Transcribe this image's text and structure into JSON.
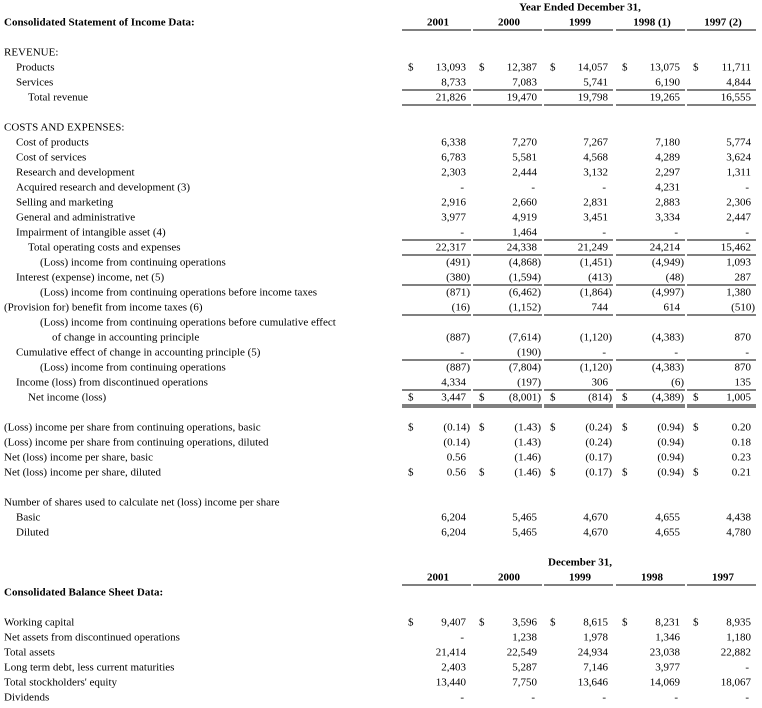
{
  "currency_symbol": "$",
  "income_statement": {
    "period_label": "Year Ended December 31,",
    "title": "Consolidated Statement of Income Data:",
    "columns": [
      "2001",
      "2000",
      "1999",
      "1998 (1)",
      "1997 (2)"
    ],
    "rows": [
      {
        "label": "REVENUE:"
      },
      {
        "label": "Products",
        "values": [
          "13,093",
          "12,387",
          "14,057",
          "13,075",
          "11,711"
        ]
      },
      {
        "label": "Services",
        "values": [
          "8,733",
          "7,083",
          "5,741",
          "6,190",
          "4,844"
        ]
      },
      {
        "label": "Total revenue",
        "values": [
          "21,826",
          "19,470",
          "19,798",
          "19,265",
          "16,555"
        ]
      },
      {
        "label": "COSTS AND EXPENSES:"
      },
      {
        "label": "Cost of products",
        "values": [
          "6,338",
          "7,270",
          "7,267",
          "7,180",
          "5,774"
        ]
      },
      {
        "label": "Cost of services",
        "values": [
          "6,783",
          "5,581",
          "4,568",
          "4,289",
          "3,624"
        ]
      },
      {
        "label": "Research and development",
        "values": [
          "2,303",
          "2,444",
          "3,132",
          "2,297",
          "1,311"
        ]
      },
      {
        "label": "Acquired research and development (3)",
        "values": [
          "-",
          "-",
          "-",
          "4,231",
          "-"
        ]
      },
      {
        "label": "Selling and marketing",
        "values": [
          "2,916",
          "2,660",
          "2,831",
          "2,883",
          "2,306"
        ]
      },
      {
        "label": "General and administrative",
        "values": [
          "3,977",
          "4,919",
          "3,451",
          "3,334",
          "2,447"
        ]
      },
      {
        "label": "Impairment of intangible asset (4)",
        "values": [
          "-",
          "1,464",
          "-",
          "-",
          "-"
        ]
      },
      {
        "label": "Total operating costs and expenses",
        "values": [
          "22,317",
          "24,338",
          "21,249",
          "24,214",
          "15,462"
        ]
      },
      {
        "label": "(Loss) income from continuing operations",
        "values": [
          "(491)",
          "(4,868)",
          "(1,451)",
          "(4,949)",
          "1,093"
        ]
      },
      {
        "label": "Interest (expense) income, net (5)",
        "values": [
          "(380)",
          "(1,594)",
          "(413)",
          "(48)",
          "287"
        ]
      },
      {
        "label": "(Loss) income from continuing operations before income taxes",
        "values": [
          "(871)",
          "(6,462)",
          "(1,864)",
          "(4,997)",
          "1,380"
        ]
      },
      {
        "label": "(Provision for) benefit from income taxes (6)",
        "values": [
          "(16)",
          "(1,152)",
          "744",
          "614",
          "(510)"
        ]
      },
      {
        "label": "(Loss) income from continuing operations before cumulative effect"
      },
      {
        "label": "of change in accounting principle",
        "values": [
          "(887)",
          "(7,614)",
          "(1,120)",
          "(4,383)",
          "870"
        ]
      },
      {
        "label": "Cumulative effect of change in accounting principle (5)",
        "values": [
          "-",
          "(190)",
          "-",
          "-",
          "-"
        ]
      },
      {
        "label": "(Loss) income from continuing operations",
        "values": [
          "(887)",
          "(7,804)",
          "(1,120)",
          "(4,383)",
          "870"
        ]
      },
      {
        "label": "Income (loss) from discontinued operations",
        "values": [
          "4,334",
          "(197)",
          "306",
          "(6)",
          "135"
        ]
      },
      {
        "label": "Net income (loss)",
        "values": [
          "3,447",
          "(8,001)",
          "(814)",
          "(4,389)",
          "1,005"
        ]
      },
      {
        "label": "(Loss) income per share from continuing operations, basic",
        "values": [
          "(0.14)",
          "(1.43)",
          "(0.24)",
          "(0.94)",
          "0.20"
        ]
      },
      {
        "label": "(Loss) income per share from continuing operations, diluted",
        "values": [
          "(0.14)",
          "(1.43)",
          "(0.24)",
          "(0.94)",
          "0.18"
        ]
      },
      {
        "label": "Net (loss) income per share, basic",
        "values": [
          "0.56",
          "(1.46)",
          "(0.17)",
          "(0.94)",
          "0.23"
        ]
      },
      {
        "label": "Net (loss) income per share, diluted",
        "values": [
          "0.56",
          "(1.46)",
          "(0.17)",
          "(0.94)",
          "0.21"
        ]
      },
      {
        "label": "Number of shares used to calculate net (loss) income per share"
      },
      {
        "label": "Basic",
        "values": [
          "6,204",
          "5,465",
          "4,670",
          "4,655",
          "4,438"
        ]
      },
      {
        "label": "Diluted",
        "values": [
          "6,204",
          "5,465",
          "4,670",
          "4,655",
          "4,780"
        ]
      }
    ]
  },
  "balance_sheet": {
    "period_label": "December 31,",
    "title": "Consolidated Balance Sheet Data:",
    "columns": [
      "2001",
      "2000",
      "1999",
      "1998",
      "1997"
    ],
    "rows": [
      {
        "label": "Working capital",
        "values": [
          "9,407",
          "3,596",
          "8,615",
          "8,231",
          "8,935"
        ]
      },
      {
        "label": "Net assets from discontinued operations",
        "values": [
          "-",
          "1,238",
          "1,978",
          "1,346",
          "1,180"
        ]
      },
      {
        "label": "Total assets",
        "values": [
          "21,414",
          "22,549",
          "24,934",
          "23,038",
          "22,882"
        ]
      },
      {
        "label": "Long term debt, less current maturities",
        "values": [
          "2,403",
          "5,287",
          "7,146",
          "3,977",
          "-"
        ]
      },
      {
        "label": "Total stockholders' equity",
        "values": [
          "13,440",
          "7,750",
          "13,646",
          "14,069",
          "18,067"
        ]
      },
      {
        "label": "Dividends",
        "values": [
          "-",
          "-",
          "-",
          "-",
          "-"
        ]
      }
    ]
  }
}
